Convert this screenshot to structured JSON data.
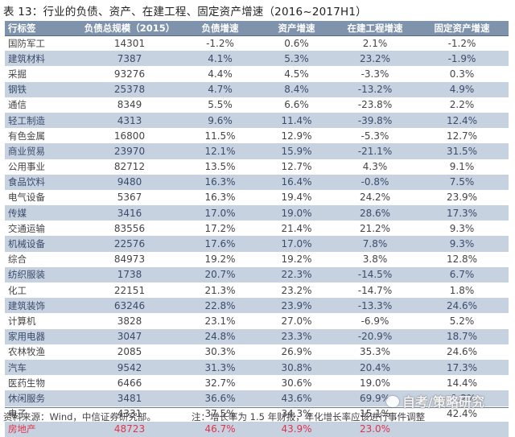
{
  "title": "表 13：行业的负债、资产、在建工程、固定资产增速（2016~2017H1）",
  "table": {
    "headers": [
      "行标签",
      "负债总规模（2015）",
      "负债增速",
      "资产增速",
      "在建工程增速",
      "固定资产增速"
    ],
    "rows": [
      [
        "国防军工",
        "14301",
        "-1.2%",
        "0.6%",
        "2.1%",
        "-1.2%"
      ],
      [
        "建筑材料",
        "7387",
        "4.1%",
        "5.3%",
        "23.2%",
        "-1.9%"
      ],
      [
        "采掘",
        "93276",
        "4.4%",
        "4.5%",
        "-3.3%",
        "0.3%"
      ],
      [
        "钢铁",
        "25378",
        "4.7%",
        "8.4%",
        "-13.2%",
        "4.9%"
      ],
      [
        "通信",
        "8349",
        "5.5%",
        "6.6%",
        "-23.8%",
        "2.2%"
      ],
      [
        "轻工制造",
        "4313",
        "9.6%",
        "11.4%",
        "-39.8%",
        "12.4%"
      ],
      [
        "有色金属",
        "16800",
        "11.5%",
        "12.9%",
        "-5.3%",
        "12.7%"
      ],
      [
        "商业贸易",
        "23970",
        "12.1%",
        "15.9%",
        "-21.1%",
        "31.5%"
      ],
      [
        "公用事业",
        "82712",
        "13.5%",
        "12.7%",
        "4.3%",
        "9.1%"
      ],
      [
        "食品饮料",
        "9480",
        "16.3%",
        "16.4%",
        "-0.8%",
        "7.5%"
      ],
      [
        "电气设备",
        "5367",
        "16.3%",
        "19.4%",
        "24.2%",
        "23.9%"
      ],
      [
        "传媒",
        "3416",
        "17.0%",
        "19.0%",
        "28.6%",
        "17.3%"
      ],
      [
        "交通运输",
        "83556",
        "17.2%",
        "21.4%",
        "21.2%",
        "9.3%"
      ],
      [
        "机械设备",
        "22576",
        "17.6%",
        "17.0%",
        "7.8%",
        "9.3%"
      ],
      [
        "综合",
        "84973",
        "19.2%",
        "19.2%",
        "3.8%",
        "12.8%"
      ],
      [
        "纺织服装",
        "1738",
        "20.7%",
        "22.3%",
        "-14.5%",
        "6.7%"
      ],
      [
        "化工",
        "22151",
        "21.3%",
        "23.2%",
        "-14.7%",
        "1.8%"
      ],
      [
        "建筑装饰",
        "63246",
        "22.8%",
        "23.9%",
        "-13.3%",
        "24.6%"
      ],
      [
        "计算机",
        "3828",
        "23.1%",
        "27.0%",
        "-6.9%",
        "5.2%"
      ],
      [
        "家用电器",
        "3047",
        "24.8%",
        "23.3%",
        "-20.9%",
        "18.7%"
      ],
      [
        "农林牧渔",
        "2085",
        "30.3%",
        "26.9%",
        "35.3%",
        "24.6%"
      ],
      [
        "汽车",
        "9542",
        "31.3%",
        "30.8%",
        "20.4%",
        "17.3%"
      ],
      [
        "医药生物",
        "6466",
        "32.7%",
        "30.6%",
        "19.0%",
        "14.4%"
      ],
      [
        "休闲服务",
        "3481",
        "36.6%",
        "43.6%",
        "69.9%",
        "-1.2%"
      ],
      [
        "电子",
        "4331",
        "37.5%",
        "34.3%",
        "15.1%",
        "42.4%"
      ],
      [
        "房地产",
        "48723",
        "46.7%",
        "43.9%",
        "23.0%",
        ""
      ]
    ]
  },
  "footer": {
    "source": "资料来源：Wind，中信证券研究部。",
    "note": "注：增长率为 1.5 年财报，年化增长率应该进行事件调整"
  },
  "watermark": "自考/策略研究",
  "colors": {
    "header_bg": "#7f93ad",
    "alt_row_bg": "#c7d2e1",
    "highlight_text": "#e0334a"
  }
}
